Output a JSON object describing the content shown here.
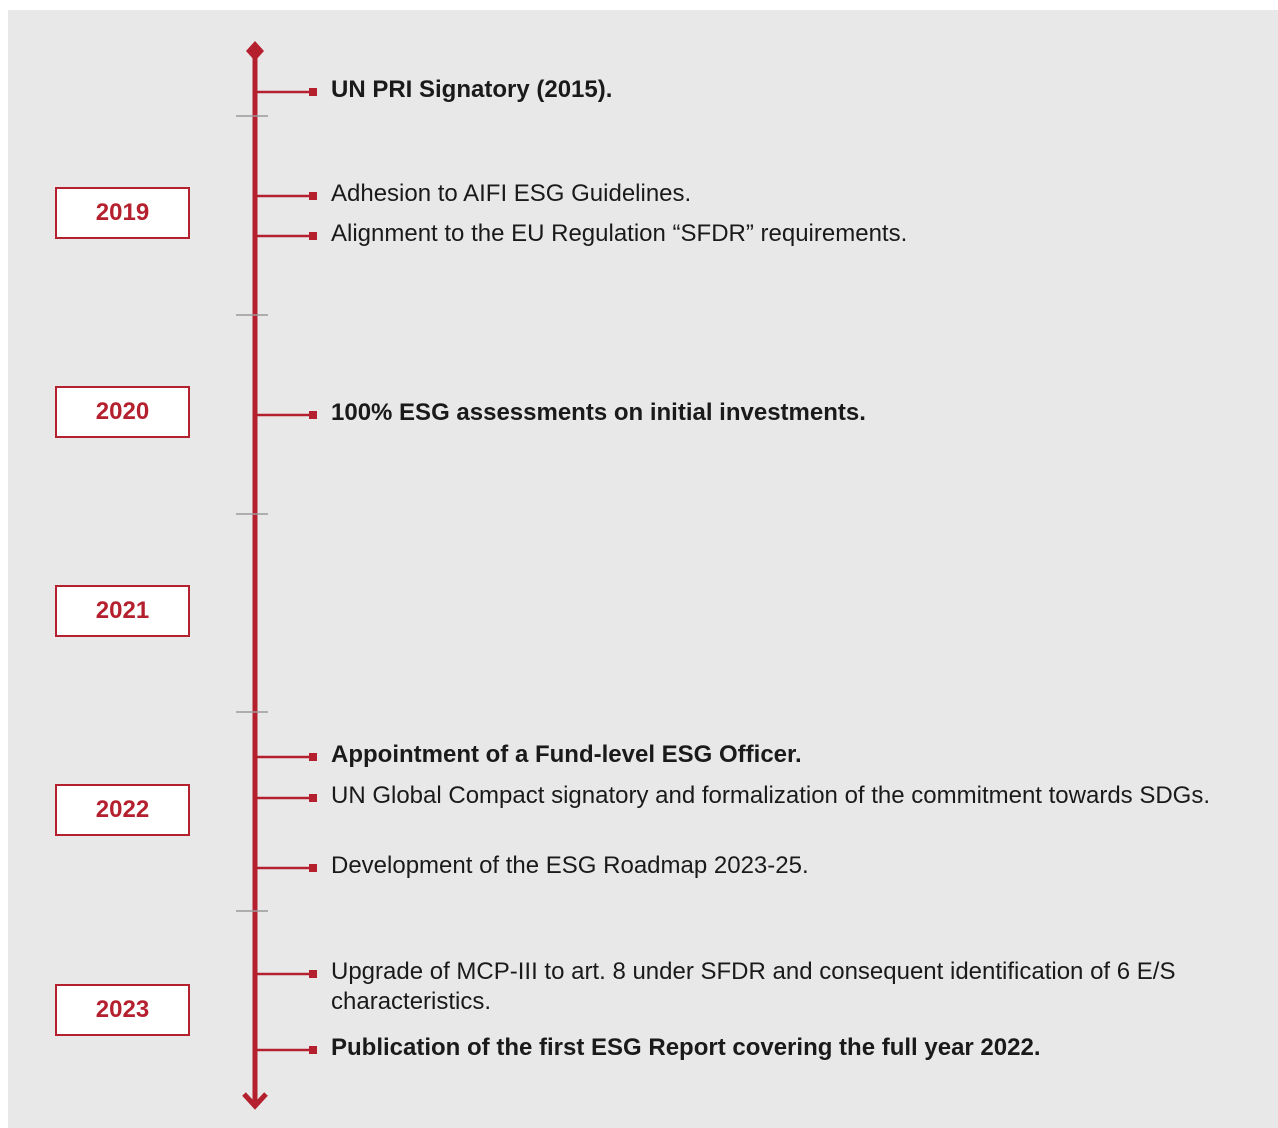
{
  "timeline": {
    "years": [
      "2019",
      "2020",
      "2021",
      "2022",
      "2023"
    ],
    "events": [
      {
        "text": "UN PRI Signatory (2015).",
        "bold": true
      },
      {
        "text": "Adhesion to AIFI ESG Guidelines.",
        "bold": false
      },
      {
        "text": "Alignment to the EU Regulation “SFDR” requirements.",
        "bold": false
      },
      {
        "text": "100% ESG assessments on initial investments.",
        "bold": true
      },
      {
        "text": "Appointment of a Fund-level ESG Officer.",
        "bold": true
      },
      {
        "text": "UN Global Compact signatory and formalization of the commitment towards SDGs.",
        "bold": false
      },
      {
        "text": "Development of the ESG Roadmap 2023-25.",
        "bold": false
      },
      {
        "text": "Upgrade of MCP-III to art. 8 under SFDR and consequent identification of 6 E/S characteristics.",
        "bold": false
      },
      {
        "text": "Publication of the first ESG Report covering the full year 2022.",
        "bold": true
      }
    ]
  }
}
